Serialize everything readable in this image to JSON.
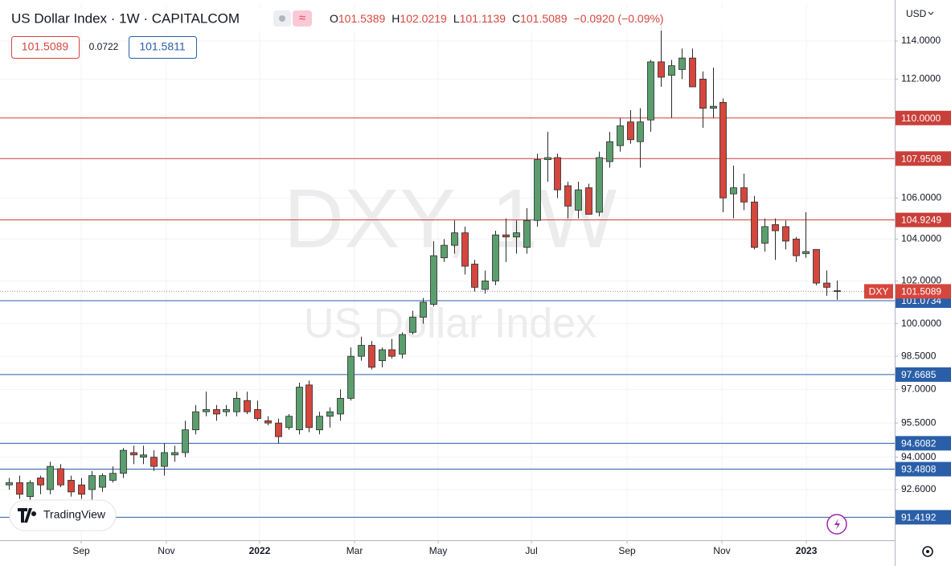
{
  "header": {
    "title": "US Dollar Index · 1W · CAPITALCOM",
    "ohlc": [
      {
        "key": "O",
        "value": "101.5389"
      },
      {
        "key": "H",
        "value": "102.0219"
      },
      {
        "key": "L",
        "value": "101.1139"
      },
      {
        "key": "C",
        "value": "101.5089"
      }
    ],
    "change": "−0.0920 (−0.09%)",
    "bid": "101.5089",
    "spread": "0.0722",
    "ask": "101.5811"
  },
  "currency": "USD",
  "logo": "TradingView",
  "chart_data": {
    "type": "candlestick",
    "watermark": [
      "DXY, 1W",
      "US Dollar Index"
    ],
    "up_color": "#5b9e6e",
    "down_color": "#d5463c",
    "border_color": "#2b2b2b",
    "log_scale": true,
    "grid": true,
    "ylim": [
      90.45,
      116.01
    ],
    "yticks": [
      {
        "value": 114,
        "label": "114.0000"
      },
      {
        "value": 112,
        "label": "112.0000"
      },
      {
        "value": 106,
        "label": "106.0000"
      },
      {
        "value": 104,
        "label": "104.0000"
      },
      {
        "value": 102,
        "label": "102.0000"
      },
      {
        "value": 100,
        "label": "100.0000"
      },
      {
        "value": 98.5,
        "label": "98.5000"
      },
      {
        "value": 97,
        "label": "97.0000"
      },
      {
        "value": 95.5,
        "label": "95.5000"
      },
      {
        "value": 94,
        "label": "94.0000"
      },
      {
        "value": 92.6,
        "label": "92.6000"
      }
    ],
    "xlim": [
      -0.854,
      85.59
    ],
    "xticks": [
      {
        "value": 6.99,
        "label": "Sep"
      },
      {
        "value": 15.22,
        "label": "Nov"
      },
      {
        "value": 24.23,
        "label": "2022"
      },
      {
        "value": 33.4,
        "label": "Mar"
      },
      {
        "value": 41.48,
        "label": "May"
      },
      {
        "value": 50.49,
        "label": "Jul"
      },
      {
        "value": 59.73,
        "label": "Sep"
      },
      {
        "value": 68.89,
        "label": "Nov"
      },
      {
        "value": 77.05,
        "label": "2023"
      }
    ],
    "levels": [
      {
        "value": 110,
        "label": "110.0000",
        "color": "#c9403a"
      },
      {
        "value": 107.9508,
        "label": "107.9508",
        "color": "#c9403a"
      },
      {
        "value": 104.9249,
        "label": "104.9249",
        "color": "#c9403a"
      },
      {
        "value": 101.0734,
        "label": "101.0734",
        "color": "#2a5fa8"
      },
      {
        "value": 97.6685,
        "label": "97.6685",
        "color": "#2a5fa8"
      },
      {
        "value": 94.6082,
        "label": "94.6082",
        "color": "#2a5fa8"
      },
      {
        "value": 93.4808,
        "label": "93.4808",
        "color": "#2a5fa8"
      },
      {
        "value": 91.4192,
        "label": "91.4192",
        "color": "#2a5fa8"
      }
    ],
    "last_price": {
      "symbol": "DXY",
      "value": 101.5089,
      "label": "101.5089",
      "color": "#d5463c"
    },
    "ohlc": [
      [
        92.8,
        93.1,
        92.6,
        92.9
      ],
      [
        92.9,
        93.2,
        92.2,
        92.4
      ],
      [
        92.3,
        93.0,
        92.0,
        92.9
      ],
      [
        93.1,
        93.2,
        92.4,
        92.8
      ],
      [
        92.6,
        93.8,
        92.4,
        93.6
      ],
      [
        93.5,
        93.7,
        92.7,
        92.8
      ],
      [
        93.0,
        93.2,
        92.3,
        92.5
      ],
      [
        92.8,
        93.1,
        92.2,
        92.4
      ],
      [
        92.6,
        93.4,
        92.0,
        93.2
      ],
      [
        92.7,
        93.3,
        92.5,
        93.2
      ],
      [
        93.0,
        93.6,
        92.9,
        93.3
      ],
      [
        93.3,
        94.4,
        93.1,
        94.3
      ],
      [
        94.2,
        94.5,
        93.7,
        94.1
      ],
      [
        94.0,
        94.5,
        93.7,
        94.1
      ],
      [
        94.0,
        94.3,
        93.4,
        93.6
      ],
      [
        93.6,
        94.6,
        93.2,
        94.2
      ],
      [
        94.1,
        94.5,
        93.8,
        94.2
      ],
      [
        94.2,
        95.6,
        94.0,
        95.2
      ],
      [
        95.2,
        96.3,
        95.0,
        96.0
      ],
      [
        96.0,
        96.9,
        95.8,
        96.1
      ],
      [
        96.1,
        96.3,
        95.6,
        95.9
      ],
      [
        96.0,
        96.3,
        95.8,
        96.1
      ],
      [
        96.0,
        96.9,
        95.8,
        96.6
      ],
      [
        96.5,
        96.9,
        95.9,
        96.0
      ],
      [
        96.1,
        96.5,
        95.6,
        95.7
      ],
      [
        95.6,
        95.8,
        95.4,
        95.5
      ],
      [
        95.5,
        95.7,
        94.6,
        94.9
      ],
      [
        95.3,
        95.9,
        95.2,
        95.8
      ],
      [
        95.2,
        97.3,
        95.0,
        97.1
      ],
      [
        97.2,
        97.4,
        95.1,
        95.3
      ],
      [
        95.2,
        96.0,
        95.0,
        95.8
      ],
      [
        95.8,
        96.2,
        95.3,
        96.0
      ],
      [
        95.9,
        97.0,
        95.6,
        96.6
      ],
      [
        96.6,
        98.9,
        96.5,
        98.5
      ],
      [
        98.5,
        99.4,
        98.3,
        99.0
      ],
      [
        99.0,
        99.2,
        97.9,
        98.0
      ],
      [
        98.3,
        98.9,
        98.0,
        98.8
      ],
      [
        98.8,
        99.3,
        98.4,
        98.5
      ],
      [
        98.6,
        99.6,
        98.4,
        99.5
      ],
      [
        99.6,
        100.6,
        99.5,
        100.3
      ],
      [
        100.3,
        101.2,
        100.0,
        101.0
      ],
      [
        100.9,
        103.9,
        100.8,
        103.2
      ],
      [
        103.1,
        104.0,
        102.9,
        103.7
      ],
      [
        103.7,
        104.9,
        103.3,
        104.3
      ],
      [
        104.3,
        104.6,
        102.3,
        102.7
      ],
      [
        102.8,
        103.0,
        101.5,
        101.7
      ],
      [
        101.6,
        102.5,
        101.4,
        102.0
      ],
      [
        102.0,
        104.4,
        101.8,
        104.2
      ],
      [
        104.2,
        105.0,
        102.9,
        104.1
      ],
      [
        104.1,
        104.9,
        103.3,
        104.3
      ],
      [
        103.6,
        105.5,
        103.3,
        104.9
      ],
      [
        104.9,
        108.2,
        104.6,
        107.9
      ],
      [
        107.9,
        109.3,
        106.8,
        108.0
      ],
      [
        108.0,
        108.2,
        106.0,
        106.4
      ],
      [
        106.6,
        106.8,
        105.0,
        105.6
      ],
      [
        105.4,
        106.8,
        105.0,
        106.4
      ],
      [
        106.5,
        106.7,
        105.2,
        105.2
      ],
      [
        105.3,
        108.3,
        105.1,
        108.0
      ],
      [
        107.8,
        109.3,
        107.5,
        108.8
      ],
      [
        108.6,
        110.0,
        108.3,
        109.6
      ],
      [
        109.8,
        110.4,
        108.7,
        108.9
      ],
      [
        108.8,
        110.5,
        107.5,
        109.8
      ],
      [
        109.9,
        113.0,
        109.3,
        112.9
      ],
      [
        112.9,
        114.8,
        111.6,
        112.1
      ],
      [
        112.2,
        113.0,
        110.0,
        112.7
      ],
      [
        112.5,
        113.6,
        112.0,
        113.1
      ],
      [
        113.1,
        113.6,
        111.6,
        111.6
      ],
      [
        112.0,
        112.4,
        109.5,
        110.5
      ],
      [
        110.5,
        112.6,
        110.0,
        110.6
      ],
      [
        110.8,
        111.0,
        105.3,
        106.0
      ],
      [
        106.2,
        107.6,
        105.0,
        106.5
      ],
      [
        106.5,
        107.2,
        105.4,
        105.8
      ],
      [
        105.8,
        106.1,
        103.5,
        103.6
      ],
      [
        103.8,
        105.0,
        103.4,
        104.6
      ],
      [
        104.7,
        105.0,
        103.0,
        104.4
      ],
      [
        104.6,
        104.9,
        103.5,
        103.9
      ],
      [
        104.0,
        104.1,
        102.9,
        103.2
      ],
      [
        103.3,
        105.3,
        103.1,
        103.4
      ],
      [
        103.5,
        103.5,
        101.8,
        101.9
      ],
      [
        101.9,
        102.5,
        101.3,
        101.7
      ],
      [
        101.5389,
        102.0219,
        101.1139,
        101.5089
      ]
    ]
  }
}
